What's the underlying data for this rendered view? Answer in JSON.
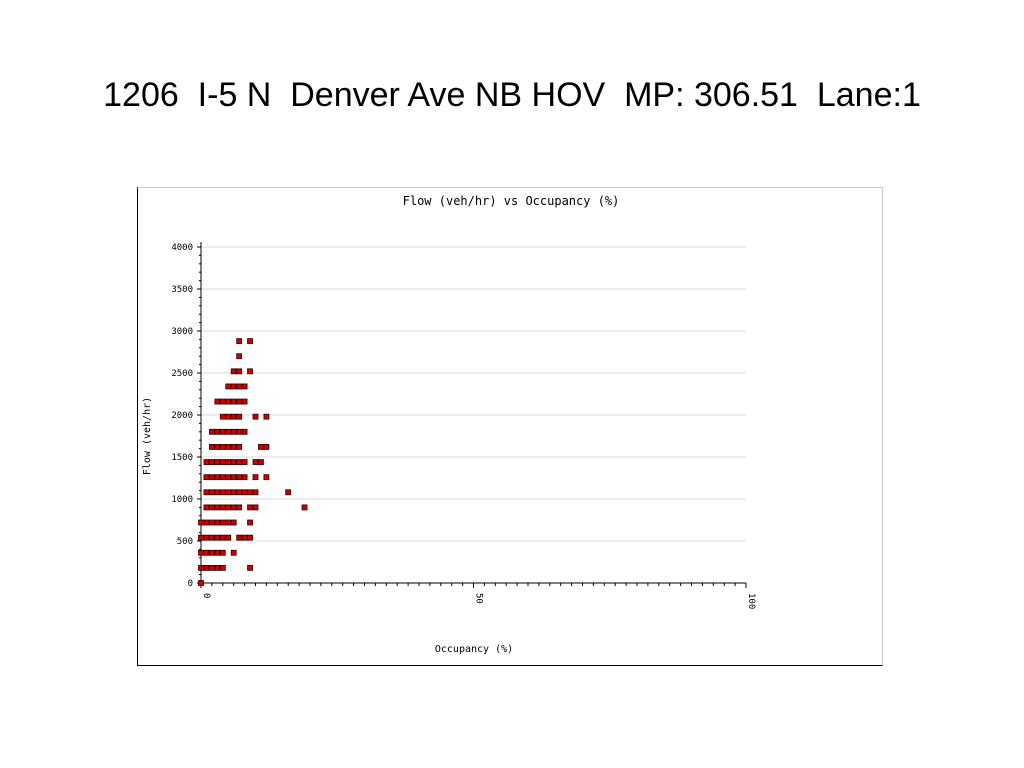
{
  "slide": {
    "title": "1206  I-5 N  Denver Ave NB HOV  MP: 306.51  Lane:1"
  },
  "chart_data": {
    "type": "scatter",
    "title": "Flow (veh/hr) vs Occupancy (%)",
    "xlabel": "Occupancy (%)",
    "ylabel": "Flow (veh/hr)",
    "xlim": [
      0,
      100
    ],
    "ylim": [
      0,
      4000
    ],
    "xticks": [
      0,
      50,
      100
    ],
    "yticks": [
      0,
      500,
      1000,
      1500,
      2000,
      2500,
      3000,
      3500,
      4000
    ],
    "grid": "horizontal",
    "marker_color": "#cc0000",
    "marker_edge": "#330000",
    "points": [
      [
        0,
        0
      ],
      [
        0,
        180
      ],
      [
        1,
        180
      ],
      [
        2,
        180
      ],
      [
        3,
        180
      ],
      [
        4,
        180
      ],
      [
        9,
        180
      ],
      [
        0,
        360
      ],
      [
        1,
        360
      ],
      [
        2,
        360
      ],
      [
        3,
        360
      ],
      [
        4,
        360
      ],
      [
        6,
        360
      ],
      [
        0,
        540
      ],
      [
        1,
        540
      ],
      [
        2,
        540
      ],
      [
        3,
        540
      ],
      [
        4,
        540
      ],
      [
        5,
        540
      ],
      [
        7,
        540
      ],
      [
        8,
        540
      ],
      [
        9,
        540
      ],
      [
        0,
        720
      ],
      [
        1,
        720
      ],
      [
        2,
        720
      ],
      [
        3,
        720
      ],
      [
        4,
        720
      ],
      [
        5,
        720
      ],
      [
        6,
        720
      ],
      [
        9,
        720
      ],
      [
        1,
        900
      ],
      [
        2,
        900
      ],
      [
        3,
        900
      ],
      [
        4,
        900
      ],
      [
        5,
        900
      ],
      [
        6,
        900
      ],
      [
        7,
        900
      ],
      [
        9,
        900
      ],
      [
        10,
        900
      ],
      [
        19,
        900
      ],
      [
        1,
        1080
      ],
      [
        2,
        1080
      ],
      [
        3,
        1080
      ],
      [
        4,
        1080
      ],
      [
        5,
        1080
      ],
      [
        6,
        1080
      ],
      [
        7,
        1080
      ],
      [
        8,
        1080
      ],
      [
        9,
        1080
      ],
      [
        10,
        1080
      ],
      [
        16,
        1080
      ],
      [
        1,
        1260
      ],
      [
        2,
        1260
      ],
      [
        3,
        1260
      ],
      [
        4,
        1260
      ],
      [
        5,
        1260
      ],
      [
        6,
        1260
      ],
      [
        7,
        1260
      ],
      [
        8,
        1260
      ],
      [
        10,
        1260
      ],
      [
        12,
        1260
      ],
      [
        1,
        1440
      ],
      [
        2,
        1440
      ],
      [
        3,
        1440
      ],
      [
        4,
        1440
      ],
      [
        5,
        1440
      ],
      [
        6,
        1440
      ],
      [
        7,
        1440
      ],
      [
        8,
        1440
      ],
      [
        10,
        1440
      ],
      [
        11,
        1440
      ],
      [
        2,
        1620
      ],
      [
        3,
        1620
      ],
      [
        4,
        1620
      ],
      [
        5,
        1620
      ],
      [
        6,
        1620
      ],
      [
        7,
        1620
      ],
      [
        11,
        1620
      ],
      [
        12,
        1620
      ],
      [
        2,
        1800
      ],
      [
        3,
        1800
      ],
      [
        4,
        1800
      ],
      [
        5,
        1800
      ],
      [
        6,
        1800
      ],
      [
        7,
        1800
      ],
      [
        8,
        1800
      ],
      [
        4,
        1980
      ],
      [
        5,
        1980
      ],
      [
        6,
        1980
      ],
      [
        7,
        1980
      ],
      [
        10,
        1980
      ],
      [
        12,
        1980
      ],
      [
        3,
        2160
      ],
      [
        4,
        2160
      ],
      [
        5,
        2160
      ],
      [
        6,
        2160
      ],
      [
        7,
        2160
      ],
      [
        8,
        2160
      ],
      [
        5,
        2340
      ],
      [
        6,
        2340
      ],
      [
        7,
        2340
      ],
      [
        8,
        2340
      ],
      [
        6,
        2520
      ],
      [
        7,
        2520
      ],
      [
        9,
        2520
      ],
      [
        7,
        2700
      ],
      [
        7,
        2880
      ],
      [
        9,
        2880
      ]
    ]
  }
}
